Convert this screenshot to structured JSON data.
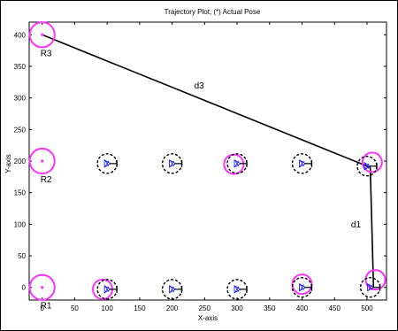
{
  "chart_data": {
    "type": "scatter",
    "title": "Trajectory Plot, (*) Actual Pose",
    "xlabel": "X-axis",
    "ylabel": "Y-axis",
    "xlim": [
      -20,
      530
    ],
    "ylim": [
      -20,
      420
    ],
    "xticks": [
      0,
      50,
      100,
      150,
      200,
      250,
      300,
      350,
      400,
      450,
      500
    ],
    "yticks": [
      0,
      50,
      100,
      150,
      200,
      250,
      300,
      350,
      400
    ],
    "grid": false,
    "colors": {
      "beacon": "#ff33ff",
      "pose": "#000000",
      "heading": "#0000ff"
    },
    "beacons": [
      {
        "label": "R1",
        "x": 0,
        "y": 0
      },
      {
        "label": "R2",
        "x": 0,
        "y": 200
      },
      {
        "label": "R3",
        "x": 0,
        "y": 400
      }
    ],
    "beacon_extra_circles": [
      {
        "x": 508,
        "y": 198
      },
      {
        "x": 513,
        "y": 12
      },
      {
        "x": 93,
        "y": -3
      },
      {
        "x": 295,
        "y": 195
      },
      {
        "x": 400,
        "y": 5
      }
    ],
    "poses": [
      {
        "x": 100,
        "y": -3
      },
      {
        "x": 200,
        "y": -3
      },
      {
        "x": 300,
        "y": -3
      },
      {
        "x": 400,
        "y": 0
      },
      {
        "x": 505,
        "y": 0
      },
      {
        "x": 100,
        "y": 196
      },
      {
        "x": 200,
        "y": 196
      },
      {
        "x": 300,
        "y": 196
      },
      {
        "x": 400,
        "y": 196
      },
      {
        "x": 500,
        "y": 192
      }
    ],
    "distance_lines": [
      {
        "label": "d3",
        "from": [
          0,
          400
        ],
        "to": [
          505,
          190
        ]
      },
      {
        "label": "d1",
        "from": [
          505,
          190
        ],
        "to": [
          510,
          0
        ]
      }
    ]
  }
}
